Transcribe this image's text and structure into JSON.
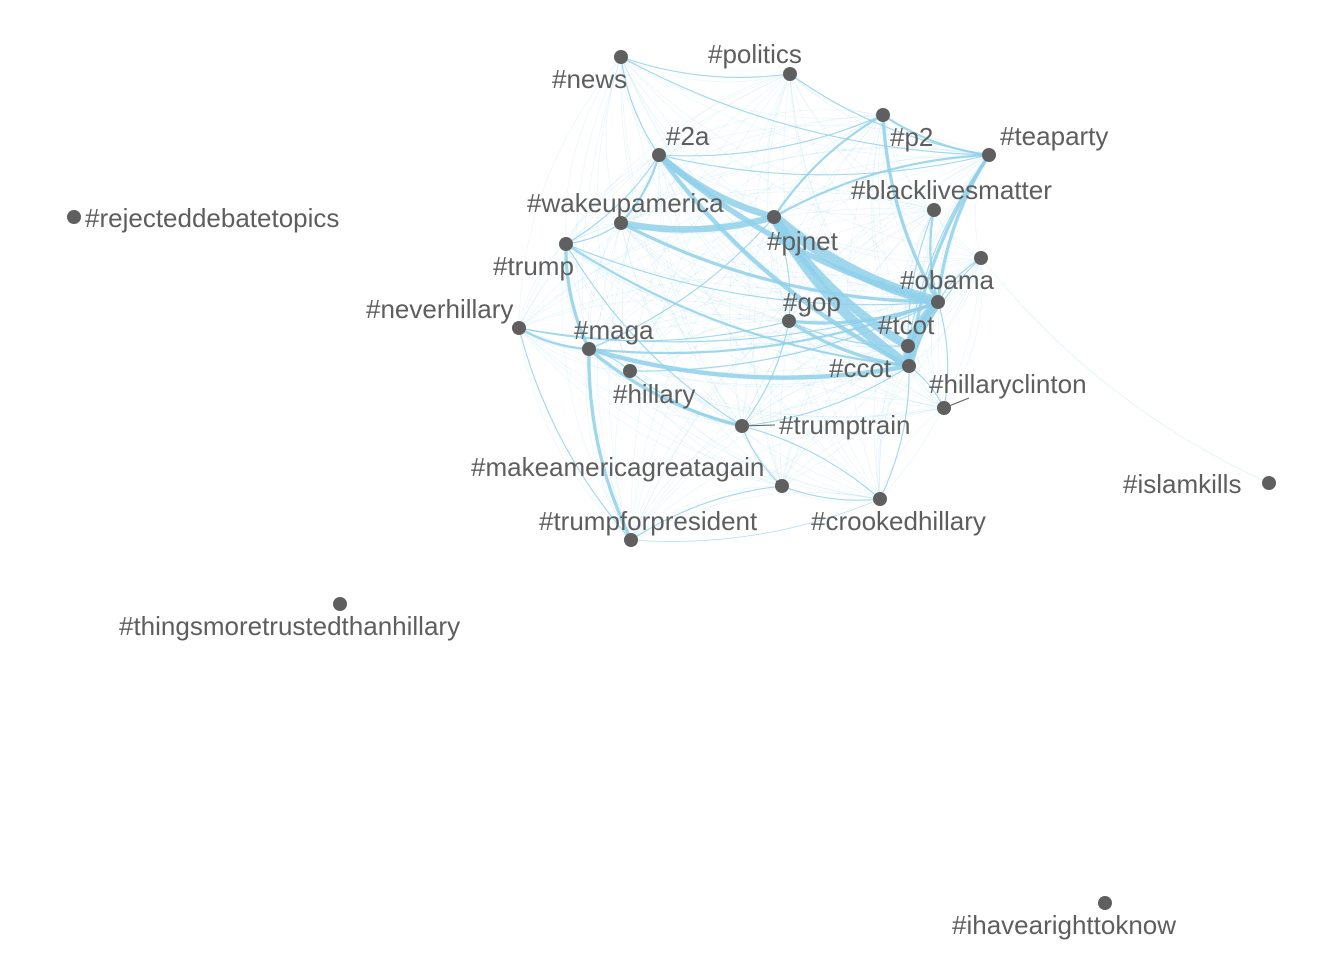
{
  "colors": {
    "edge": "#8fd0ea",
    "node": "#5f5f5f",
    "label": "#5e5e5e",
    "background": "#ffffff"
  },
  "nodes": [
    {
      "id": "news",
      "label": "#news"
    },
    {
      "id": "politics",
      "label": "#politics"
    },
    {
      "id": "p2",
      "label": "#p2"
    },
    {
      "id": "teaparty",
      "label": "#teaparty"
    },
    {
      "id": "2a",
      "label": "#2a"
    },
    {
      "id": "blacklivesmatter",
      "label": "#blacklivesmatter"
    },
    {
      "id": "wakeupamerica",
      "label": "#wakeupamerica"
    },
    {
      "id": "pjnet",
      "label": "#pjnet"
    },
    {
      "id": "rejecteddebatetopics",
      "label": "#rejecteddebatetopics"
    },
    {
      "id": "trump",
      "label": "#trump"
    },
    {
      "id": "unlabeled",
      "label": ""
    },
    {
      "id": "obama",
      "label": "#obama"
    },
    {
      "id": "gop",
      "label": "#gop"
    },
    {
      "id": "neverhillary",
      "label": "#neverhillary"
    },
    {
      "id": "tcot",
      "label": "#tcot"
    },
    {
      "id": "maga",
      "label": "#maga"
    },
    {
      "id": "ccot",
      "label": "#ccot"
    },
    {
      "id": "hillary",
      "label": "#hillary"
    },
    {
      "id": "hillaryclinton",
      "label": "#hillaryclinton"
    },
    {
      "id": "trumptrain",
      "label": "#trumptrain"
    },
    {
      "id": "makeamericagreatagain",
      "label": "#makeamericagreatagain"
    },
    {
      "id": "islamkills",
      "label": "#islamkills"
    },
    {
      "id": "crookedhillary",
      "label": "#crookedhillary"
    },
    {
      "id": "trumpforpresident",
      "label": "#trumpforpresident"
    },
    {
      "id": "thingsmoretrustedthanhillary",
      "label": "#thingsmoretrustedthanhillary"
    },
    {
      "id": "ihavearighttoknow",
      "label": "#ihavearighttoknow"
    }
  ],
  "edges": [
    {
      "source": "pjnet",
      "target": "obama",
      "weight": 10
    },
    {
      "source": "pjnet",
      "target": "ccot",
      "weight": 9
    },
    {
      "source": "pjnet",
      "target": "tcot",
      "weight": 8
    },
    {
      "source": "obama",
      "target": "ccot",
      "weight": 8
    },
    {
      "source": "obama",
      "target": "tcot",
      "weight": 7
    },
    {
      "source": "tcot",
      "target": "ccot",
      "weight": 7
    },
    {
      "source": "2a",
      "target": "pjnet",
      "weight": 6
    },
    {
      "source": "2a",
      "target": "obama",
      "weight": 5
    },
    {
      "source": "2a",
      "target": "ccot",
      "weight": 4
    },
    {
      "source": "wakeupamerica",
      "target": "pjnet",
      "weight": 6
    },
    {
      "source": "wakeupamerica",
      "target": "obama",
      "weight": 3
    },
    {
      "source": "gop",
      "target": "ccot",
      "weight": 3
    },
    {
      "source": "gop",
      "target": "obama",
      "weight": 3
    },
    {
      "source": "teaparty",
      "target": "obama",
      "weight": 3
    },
    {
      "source": "teaparty",
      "target": "ccot",
      "weight": 3
    },
    {
      "source": "teaparty",
      "target": "pjnet",
      "weight": 2
    },
    {
      "source": "p2",
      "target": "obama",
      "weight": 3
    },
    {
      "source": "p2",
      "target": "teaparty",
      "weight": 2
    },
    {
      "source": "p2",
      "target": "pjnet",
      "weight": 2
    },
    {
      "source": "blacklivesmatter",
      "target": "obama",
      "weight": 2
    },
    {
      "source": "maga",
      "target": "ccot",
      "weight": 4
    },
    {
      "source": "maga",
      "target": "trumptrain",
      "weight": 3
    },
    {
      "source": "maga",
      "target": "obama",
      "weight": 2
    },
    {
      "source": "trump",
      "target": "maga",
      "weight": 3
    },
    {
      "source": "trump",
      "target": "ccot",
      "weight": 2
    },
    {
      "source": "trump",
      "target": "obama",
      "weight": 1
    },
    {
      "source": "maga",
      "target": "trumpforpresident",
      "weight": 3
    },
    {
      "source": "neverhillary",
      "target": "maga",
      "weight": 2
    },
    {
      "source": "neverhillary",
      "target": "obama",
      "weight": 1
    },
    {
      "source": "neverhillary",
      "target": "trumpforpresident",
      "weight": 1
    },
    {
      "source": "wakeupamerica",
      "target": "2a",
      "weight": 2
    },
    {
      "source": "trump",
      "target": "wakeupamerica",
      "weight": 1
    },
    {
      "source": "trump",
      "target": "trumptrain",
      "weight": 1
    },
    {
      "source": "hillary",
      "target": "trumptrain",
      "weight": 1
    },
    {
      "source": "trumptrain",
      "target": "makeamericagreatagain",
      "weight": 1
    },
    {
      "source": "makeamericagreatagain",
      "target": "trumpforpresident",
      "weight": 1
    },
    {
      "source": "makeamericagreatagain",
      "target": "crookedhillary",
      "weight": 1
    },
    {
      "source": "trumptrain",
      "target": "gop",
      "weight": 1
    },
    {
      "source": "trumptrain",
      "target": "ccot",
      "weight": 1
    },
    {
      "source": "politics",
      "target": "teaparty",
      "weight": 1
    },
    {
      "source": "news",
      "target": "politics",
      "weight": 1
    },
    {
      "source": "news",
      "target": "2a",
      "weight": 1
    },
    {
      "source": "news",
      "target": "teaparty",
      "weight": 1
    },
    {
      "source": "2a",
      "target": "teaparty",
      "weight": 1
    },
    {
      "source": "2a",
      "target": "p2",
      "weight": 1
    },
    {
      "source": "unlabeled",
      "target": "obama",
      "weight": 1
    },
    {
      "source": "unlabeled",
      "target": "ccot",
      "weight": 1
    },
    {
      "source": "unlabeled",
      "target": "islamkills",
      "weight": 0.3
    },
    {
      "source": "hillaryclinton",
      "target": "ccot",
      "weight": 1
    },
    {
      "source": "hillaryclinton",
      "target": "obama",
      "weight": 1
    },
    {
      "source": "crookedhillary",
      "target": "ccot",
      "weight": 1
    },
    {
      "source": "crookedhillary",
      "target": "trumptrain",
      "weight": 1
    },
    {
      "source": "hillary",
      "target": "maga",
      "weight": 1
    },
    {
      "source": "hillary",
      "target": "obama",
      "weight": 1
    },
    {
      "source": "gop",
      "target": "pjnet",
      "weight": 1
    },
    {
      "source": "gop",
      "target": "tcot",
      "weight": 1
    },
    {
      "source": "maga",
      "target": "pjnet",
      "weight": 1
    },
    {
      "source": "trump",
      "target": "2a",
      "weight": 1
    },
    {
      "source": "neverhillary",
      "target": "gop",
      "weight": 1
    },
    {
      "source": "trumpforpresident",
      "target": "crookedhillary",
      "weight": 0.5
    },
    {
      "source": "blacklivesmatter",
      "target": "ccot",
      "weight": 1
    },
    {
      "source": "teaparty",
      "target": "tcot",
      "weight": 1
    }
  ]
}
